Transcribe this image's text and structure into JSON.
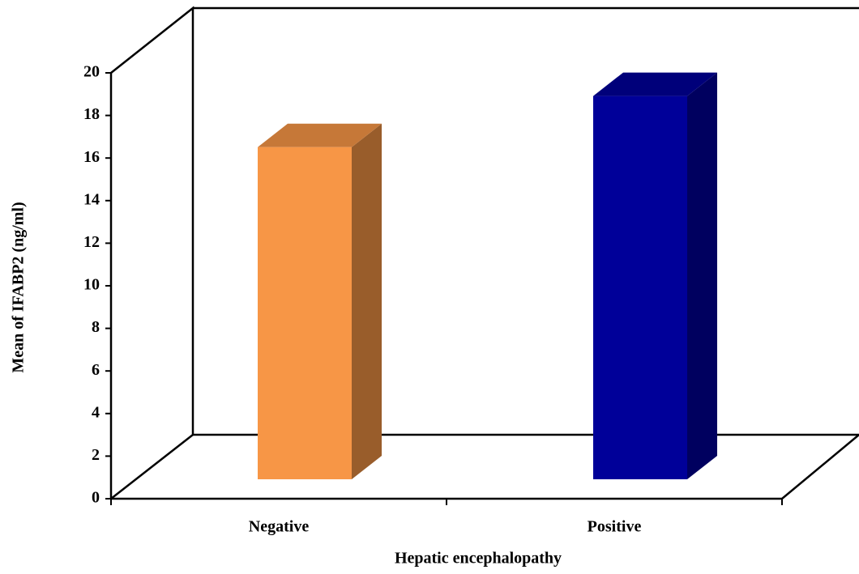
{
  "chart_data": {
    "type": "bar",
    "x_label": "Hepatic encephalopathy",
    "y_label": "Mean of IFABP2 (ng/ml)",
    "categories": [
      "Negative",
      "Positive"
    ],
    "values": [
      15.6,
      18
    ],
    "colors": [
      "#f79646",
      "#000099"
    ],
    "ylim": [
      0,
      20
    ],
    "yticks": [
      0,
      2,
      4,
      6,
      8,
      10,
      12,
      14,
      16,
      18,
      20
    ]
  }
}
